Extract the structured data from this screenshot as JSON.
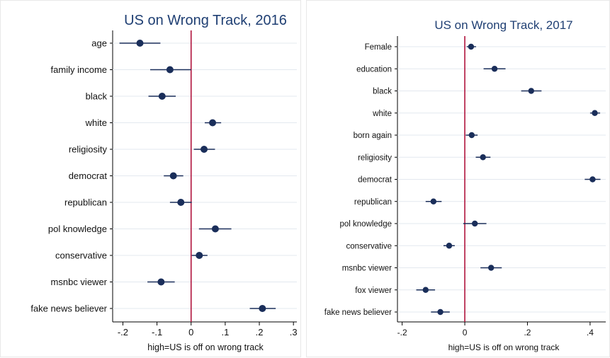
{
  "chart_data": [
    {
      "type": "scatter",
      "title": "US on Wrong Track, 2016",
      "xlabel": "high=US is off on wrong track",
      "xticks": [
        -0.2,
        -0.1,
        0,
        0.1,
        0.2,
        0.3
      ],
      "xtick_labels": [
        "-.2",
        "-.1",
        "0",
        ".1",
        ".2",
        ".3"
      ],
      "xlim": [
        -0.23,
        0.31
      ],
      "reference_line": 0,
      "categories": [
        "age",
        "family income",
        "black",
        "white",
        "religiosity",
        "democrat",
        "republican",
        "pol knowledge",
        "conservative",
        "msnbc viewer",
        "fake news believer"
      ],
      "values": [
        -0.15,
        -0.062,
        -0.085,
        0.063,
        0.038,
        -0.052,
        -0.03,
        0.071,
        0.024,
        -0.088,
        0.209
      ],
      "ci_low": [
        -0.21,
        -0.12,
        -0.125,
        0.04,
        0.008,
        -0.08,
        -0.062,
        0.023,
        0.002,
        -0.128,
        0.172
      ],
      "ci_high": [
        -0.09,
        0.0,
        -0.045,
        0.088,
        0.07,
        -0.023,
        0.002,
        0.118,
        0.048,
        -0.048,
        0.248
      ],
      "grid": true,
      "colors": {
        "point": "#1a2e5a",
        "ref_line": "#b0133c",
        "grid": "#e3e8ef",
        "title": "#1f3f73"
      }
    },
    {
      "type": "scatter",
      "title": "US on Wrong Track, 2017",
      "xlabel": "high=US is off on wrong track",
      "xticks": [
        -0.2,
        0,
        0.2,
        0.4
      ],
      "xtick_labels": [
        "-.2",
        "0",
        ".2",
        ".4"
      ],
      "xlim": [
        -0.215,
        0.45
      ],
      "reference_line": 0,
      "categories": [
        "Female",
        "education",
        "black",
        "white",
        "born again",
        "religiosity",
        "democrat",
        "republican",
        "pol knowledge",
        "conservative",
        "msnbc viewer",
        "fox viewer",
        "fake news believer"
      ],
      "values": [
        0.02,
        0.095,
        0.212,
        0.415,
        0.022,
        0.058,
        0.408,
        -0.1,
        0.032,
        -0.05,
        0.084,
        -0.125,
        -0.078
      ],
      "ci_low": [
        0.006,
        0.06,
        0.18,
        0.4,
        0.003,
        0.035,
        0.383,
        -0.125,
        -0.005,
        -0.068,
        0.05,
        -0.155,
        -0.108
      ],
      "ci_high": [
        0.036,
        0.13,
        0.245,
        0.432,
        0.041,
        0.082,
        0.433,
        -0.074,
        0.069,
        -0.032,
        0.118,
        -0.095,
        -0.048
      ],
      "grid": true,
      "colors": {
        "point": "#1a2e5a",
        "ref_line": "#b0133c",
        "grid": "#e3e8ef",
        "title": "#1f3f73"
      }
    }
  ]
}
